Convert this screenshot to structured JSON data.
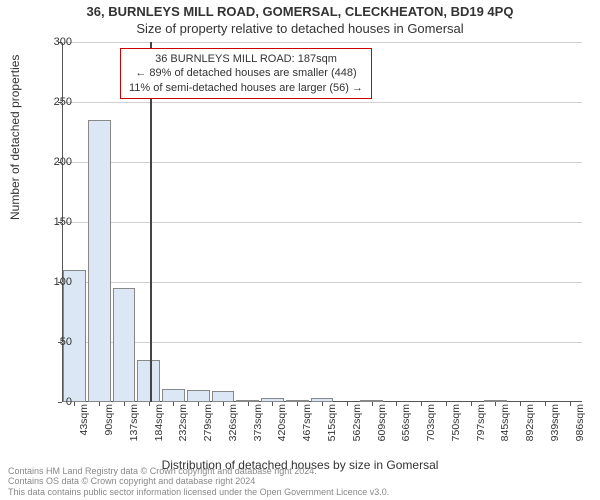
{
  "title_top": "36, BURNLEYS MILL ROAD, GOMERSAL, CLECKHEATON, BD19 4PQ",
  "title_sub": "Size of property relative to detached houses in Gomersal",
  "annotation": {
    "line1": "36 BURNLEYS MILL ROAD: 187sqm",
    "line2": "← 89% of detached houses are smaller (448)",
    "line3": "11% of semi-detached houses are larger (56) →"
  },
  "chart": {
    "type": "bar",
    "ylim": [
      0,
      300
    ],
    "ytick_step": 50,
    "yticks": [
      0,
      50,
      100,
      150,
      200,
      250,
      300
    ],
    "ylabel": "Number of detached properties",
    "xlabel": "Distribution of detached houses by size in Gomersal",
    "bar_color": "#dbe7f5",
    "bar_border": "#888888",
    "grid_color": "#d0d0d0",
    "background": "#ffffff",
    "marker_value": 187,
    "marker_color": "#444444",
    "annotation_border": "#cc0000",
    "x_categories": [
      "43sqm",
      "90sqm",
      "137sqm",
      "184sqm",
      "232sqm",
      "279sqm",
      "326sqm",
      "373sqm",
      "420sqm",
      "467sqm",
      "515sqm",
      "562sqm",
      "609sqm",
      "656sqm",
      "703sqm",
      "750sqm",
      "797sqm",
      "845sqm",
      "892sqm",
      "939sqm",
      "986sqm"
    ],
    "x_start": 43,
    "x_step": 47,
    "values": [
      110,
      235,
      95,
      35,
      11,
      10,
      9,
      1,
      3,
      2,
      3,
      0,
      1,
      0,
      0,
      0,
      0,
      1,
      0,
      0,
      0
    ]
  },
  "footer": {
    "line1": "Contains HM Land Registry data © Crown copyright and database right 2024.",
    "line2": "Contains OS data © Crown copyright and database right 2024",
    "line3": "This data contains public sector information licensed under the Open Government Licence v3.0."
  }
}
